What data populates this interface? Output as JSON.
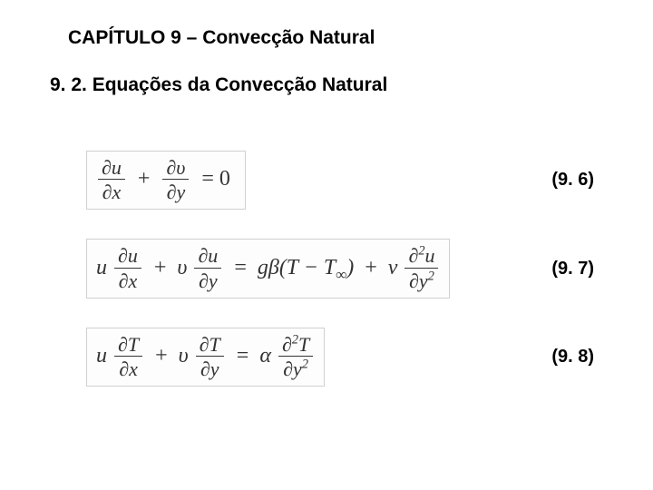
{
  "fonts": {
    "ui_family": "Arial, Helvetica, sans-serif",
    "math_family": "Times New Roman, Times, serif",
    "title_pt": 21,
    "equation_pt": 24,
    "eqnum_pt": 20
  },
  "colors": {
    "background": "#ffffff",
    "text": "#000000",
    "equation_text": "#333333",
    "equation_border": "#d0d0d0",
    "equation_bg": "#fdfdfd"
  },
  "chapter": {
    "title": "CAPÍTULO 9 – Convecção Natural"
  },
  "section": {
    "title": "9. 2. Equações da Convecção Natural"
  },
  "equations": [
    {
      "number": "(9. 6)",
      "plain": "∂u/∂x + ∂υ/∂y = 0",
      "terms": {
        "t1_num": "∂u",
        "t1_den": "∂x",
        "plus": "+",
        "t2_num": "∂υ",
        "t2_den": "∂y",
        "eq": "= 0"
      }
    },
    {
      "number": "(9. 7)",
      "plain": "u ∂u/∂x + υ ∂u/∂y = gβ(T − T∞) + ν ∂²u/∂y²",
      "terms": {
        "lead1": "u",
        "t1_num": "∂u",
        "t1_den": "∂x",
        "plus1": "+",
        "lead2": "υ",
        "t2_num": "∂u",
        "t2_den": "∂y",
        "eq": "=",
        "rhs1a": "gβ(T − T",
        "rhs1sub": "∞",
        "rhs1b": ")",
        "plus2": "+",
        "nu": "ν",
        "t3_num_a": "∂",
        "t3_num_sup": "2",
        "t3_num_b": "u",
        "t3_den_a": "∂y",
        "t3_den_sup": "2"
      }
    },
    {
      "number": "(9. 8)",
      "plain": "u ∂T/∂x + υ ∂T/∂y = α ∂²T/∂y²",
      "terms": {
        "lead1": "u",
        "t1_num": "∂T",
        "t1_den": "∂x",
        "plus1": "+",
        "lead2": "υ",
        "t2_num": "∂T",
        "t2_den": "∂y",
        "eq": "=",
        "alpha": "α",
        "t3_num_a": "∂",
        "t3_num_sup": "2",
        "t3_num_b": "T",
        "t3_den_a": "∂y",
        "t3_den_sup": "2"
      }
    }
  ]
}
